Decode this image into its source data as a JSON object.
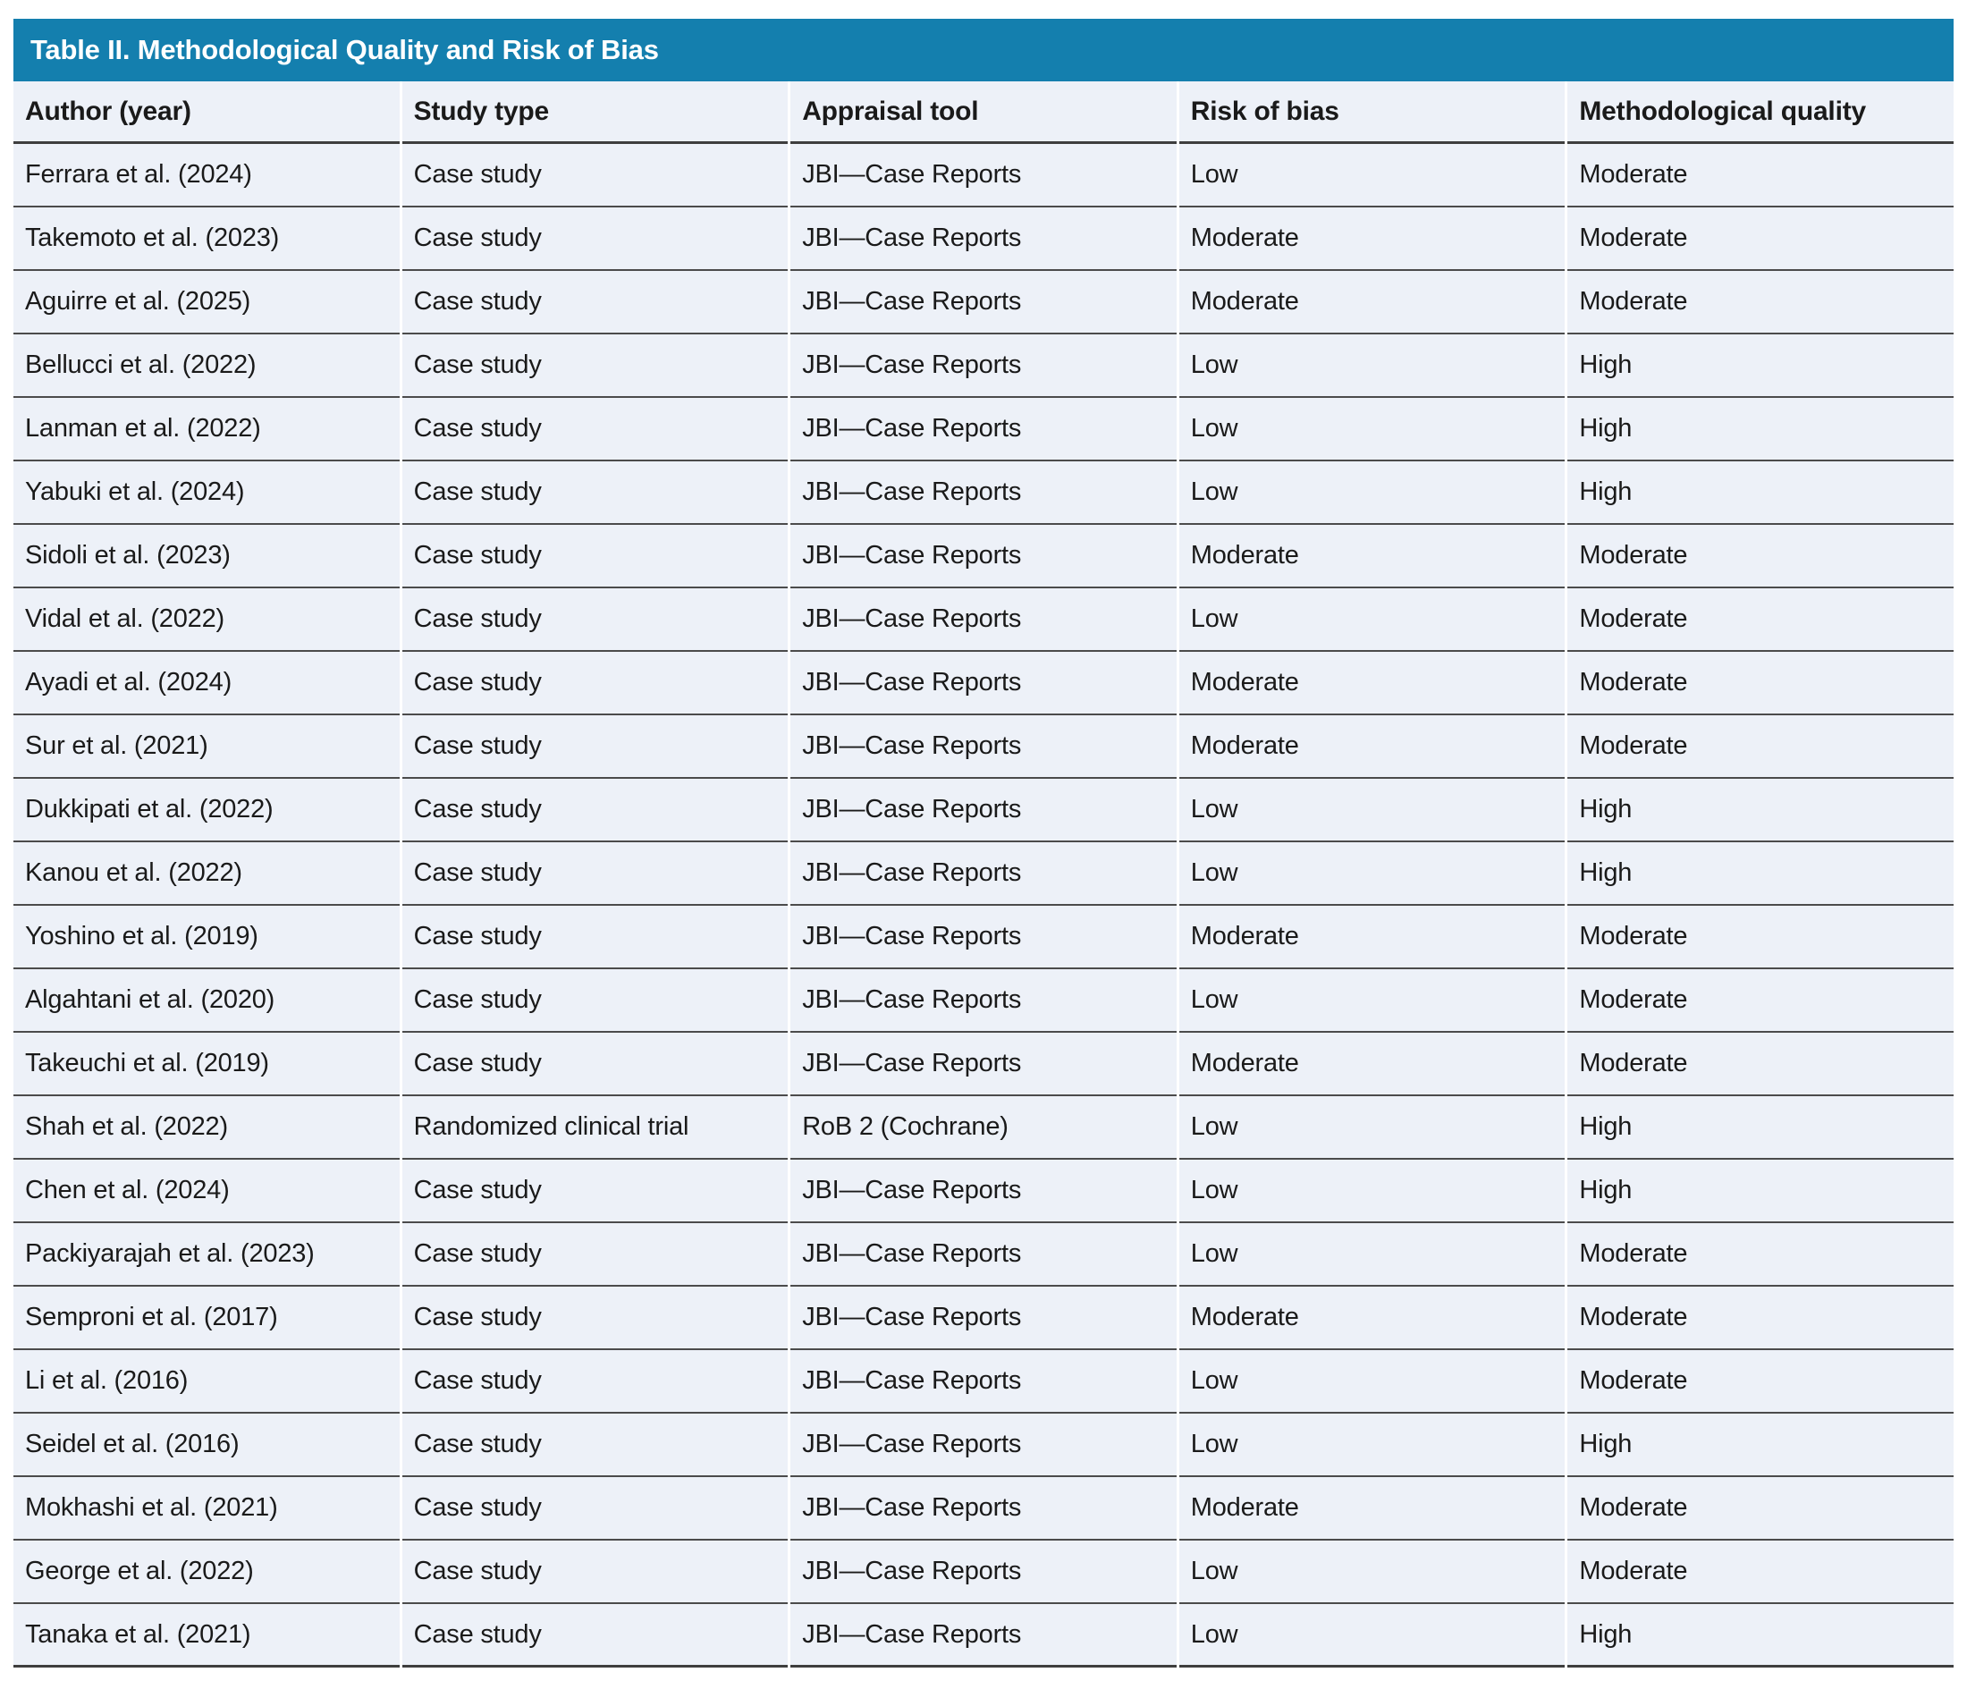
{
  "table": {
    "title": "Table II. Methodological Quality and Risk of Bias",
    "columns": [
      "Author (year)",
      "Study type",
      "Appraisal tool",
      "Risk of bias",
      "Methodological quality"
    ],
    "rows": [
      {
        "author": "Ferrara et al. (2024)",
        "study_type": "Case study",
        "appraisal_tool": "JBI—Case Reports",
        "risk_of_bias": "Low",
        "methodological_quality": "Moderate"
      },
      {
        "author": "Takemoto et al. (2023)",
        "study_type": "Case study",
        "appraisal_tool": "JBI—Case Reports",
        "risk_of_bias": "Moderate",
        "methodological_quality": "Moderate"
      },
      {
        "author": "Aguirre et al. (2025)",
        "study_type": "Case study",
        "appraisal_tool": "JBI—Case Reports",
        "risk_of_bias": "Moderate",
        "methodological_quality": "Moderate"
      },
      {
        "author": "Bellucci et al. (2022)",
        "study_type": "Case study",
        "appraisal_tool": "JBI—Case Reports",
        "risk_of_bias": "Low",
        "methodological_quality": "High"
      },
      {
        "author": "Lanman et al. (2022)",
        "study_type": "Case study",
        "appraisal_tool": "JBI—Case Reports",
        "risk_of_bias": "Low",
        "methodological_quality": "High"
      },
      {
        "author": "Yabuki et al. (2024)",
        "study_type": "Case study",
        "appraisal_tool": "JBI—Case Reports",
        "risk_of_bias": "Low",
        "methodological_quality": "High"
      },
      {
        "author": "Sidoli et al. (2023)",
        "study_type": "Case study",
        "appraisal_tool": "JBI—Case Reports",
        "risk_of_bias": "Moderate",
        "methodological_quality": "Moderate"
      },
      {
        "author": "Vidal et al. (2022)",
        "study_type": "Case study",
        "appraisal_tool": "JBI—Case Reports",
        "risk_of_bias": "Low",
        "methodological_quality": "Moderate"
      },
      {
        "author": "Ayadi et al. (2024)",
        "study_type": "Case study",
        "appraisal_tool": "JBI—Case Reports",
        "risk_of_bias": "Moderate",
        "methodological_quality": "Moderate"
      },
      {
        "author": "Sur et al. (2021)",
        "study_type": "Case study",
        "appraisal_tool": "JBI—Case Reports",
        "risk_of_bias": "Moderate",
        "methodological_quality": "Moderate"
      },
      {
        "author": "Dukkipati et al. (2022)",
        "study_type": "Case study",
        "appraisal_tool": "JBI—Case Reports",
        "risk_of_bias": "Low",
        "methodological_quality": "High"
      },
      {
        "author": "Kanou et al. (2022)",
        "study_type": "Case study",
        "appraisal_tool": "JBI—Case Reports",
        "risk_of_bias": "Low",
        "methodological_quality": "High"
      },
      {
        "author": "Yoshino et al. (2019)",
        "study_type": "Case study",
        "appraisal_tool": "JBI—Case Reports",
        "risk_of_bias": "Moderate",
        "methodological_quality": "Moderate"
      },
      {
        "author": "Algahtani et al. (2020)",
        "study_type": "Case study",
        "appraisal_tool": "JBI—Case Reports",
        "risk_of_bias": "Low",
        "methodological_quality": "Moderate"
      },
      {
        "author": "Takeuchi et al. (2019)",
        "study_type": "Case study",
        "appraisal_tool": "JBI—Case Reports",
        "risk_of_bias": "Moderate",
        "methodological_quality": "Moderate"
      },
      {
        "author": "Shah et al. (2022)",
        "study_type": "Randomized clinical trial",
        "appraisal_tool": "RoB 2 (Cochrane)",
        "risk_of_bias": "Low",
        "methodological_quality": "High"
      },
      {
        "author": "Chen et al. (2024)",
        "study_type": "Case study",
        "appraisal_tool": "JBI—Case Reports",
        "risk_of_bias": "Low",
        "methodological_quality": "High"
      },
      {
        "author": "Packiyarajah et al. (2023)",
        "study_type": "Case study",
        "appraisal_tool": "JBI—Case Reports",
        "risk_of_bias": "Low",
        "methodological_quality": "Moderate"
      },
      {
        "author": "Semproni et al. (2017)",
        "study_type": "Case study",
        "appraisal_tool": "JBI—Case Reports",
        "risk_of_bias": "Moderate",
        "methodological_quality": "Moderate"
      },
      {
        "author": "Li et al. (2016)",
        "study_type": "Case study",
        "appraisal_tool": "JBI—Case Reports",
        "risk_of_bias": "Low",
        "methodological_quality": "Moderate"
      },
      {
        "author": "Seidel et al. (2016)",
        "study_type": "Case study",
        "appraisal_tool": "JBI—Case Reports",
        "risk_of_bias": "Low",
        "methodological_quality": "High"
      },
      {
        "author": "Mokhashi et al. (2021)",
        "study_type": "Case study",
        "appraisal_tool": "JBI—Case Reports",
        "risk_of_bias": "Moderate",
        "methodological_quality": "Moderate"
      },
      {
        "author": "George et al. (2022)",
        "study_type": "Case study",
        "appraisal_tool": "JBI—Case Reports",
        "risk_of_bias": "Low",
        "methodological_quality": "Moderate"
      },
      {
        "author": "Tanaka et al. (2021)",
        "study_type": "Case study",
        "appraisal_tool": "JBI—Case Reports",
        "risk_of_bias": "Low",
        "methodological_quality": "High"
      }
    ]
  },
  "colors": {
    "header_bar": "#147FAE",
    "row_bg": "#EDF1F8",
    "separator": "#4B4B4B",
    "strong_line": "#3E3E3E",
    "text": "#1A1A1A",
    "title_text": "#FFFFFF"
  }
}
